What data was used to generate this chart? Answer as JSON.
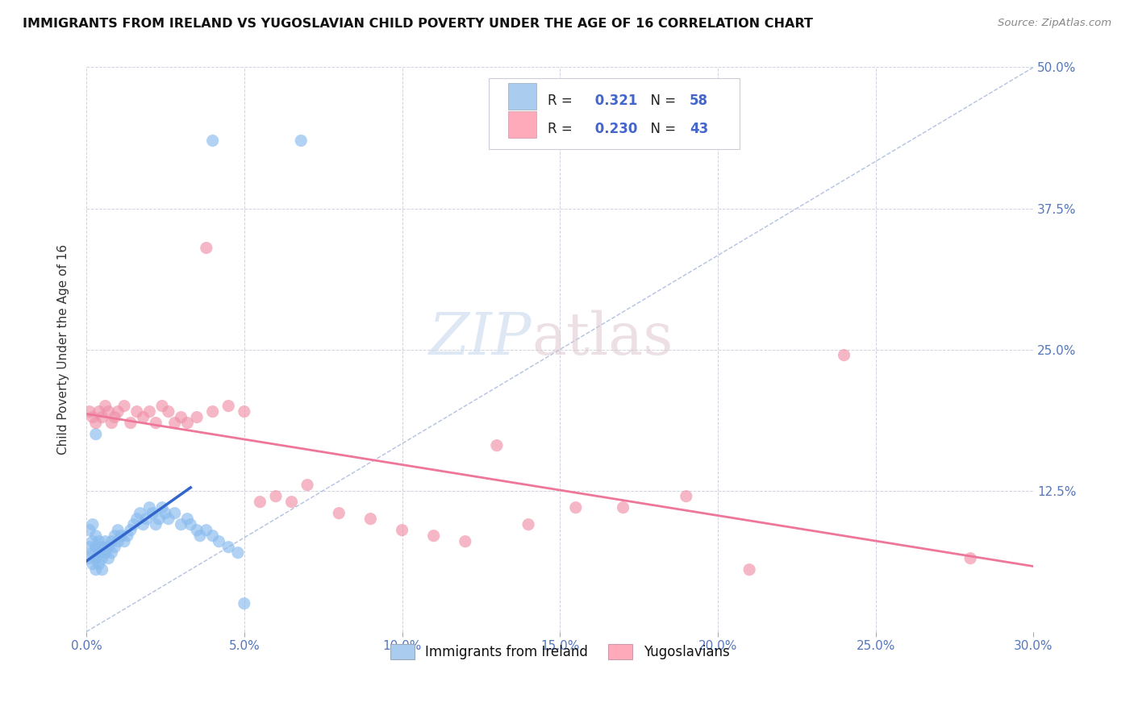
{
  "title": "IMMIGRANTS FROM IRELAND VS YUGOSLAVIAN CHILD POVERTY UNDER THE AGE OF 16 CORRELATION CHART",
  "source": "Source: ZipAtlas.com",
  "ylabel": "Child Poverty Under the Age of 16",
  "xlim": [
    0.0,
    0.3
  ],
  "ylim": [
    0.0,
    0.5
  ],
  "x_tick_vals": [
    0.0,
    0.05,
    0.1,
    0.15,
    0.2,
    0.25,
    0.3
  ],
  "x_tick_labels": [
    "0.0%",
    "5.0%",
    "10.0%",
    "15.0%",
    "20.0%",
    "25.0%",
    "30.0%"
  ],
  "y_tick_vals": [
    0.0,
    0.125,
    0.25,
    0.375,
    0.5
  ],
  "y_tick_labels": [
    "",
    "12.5%",
    "25.0%",
    "37.5%",
    "50.0%"
  ],
  "ireland_color": "#88bbee",
  "yugoslav_color": "#f090a8",
  "ireland_line_color": "#3366cc",
  "yugoslav_line_color": "#ee7799",
  "dashed_line_color": "#aabbdd",
  "legend_patch_ireland": "#aaccee",
  "legend_patch_yugoslav": "#ffaabb",
  "legend_labels_bottom": [
    "Immigrants from Ireland",
    "Yugoslavians"
  ],
  "watermark_zip_color": "#d0ddf0",
  "watermark_atlas_color": "#ddc8d0",
  "ireland_x": [
    0.001,
    0.001,
    0.001,
    0.002,
    0.002,
    0.002,
    0.002,
    0.003,
    0.003,
    0.003,
    0.003,
    0.004,
    0.004,
    0.004,
    0.005,
    0.005,
    0.005,
    0.006,
    0.006,
    0.007,
    0.007,
    0.008,
    0.008,
    0.009,
    0.009,
    0.01,
    0.01,
    0.011,
    0.012,
    0.013,
    0.014,
    0.015,
    0.016,
    0.017,
    0.018,
    0.019,
    0.02,
    0.021,
    0.022,
    0.023,
    0.024,
    0.025,
    0.026,
    0.028,
    0.03,
    0.032,
    0.033,
    0.035,
    0.036,
    0.038,
    0.04,
    0.042,
    0.045,
    0.048,
    0.05,
    0.003,
    0.04,
    0.068
  ],
  "ireland_y": [
    0.065,
    0.075,
    0.09,
    0.06,
    0.07,
    0.08,
    0.095,
    0.055,
    0.065,
    0.075,
    0.085,
    0.06,
    0.07,
    0.08,
    0.055,
    0.065,
    0.075,
    0.07,
    0.08,
    0.065,
    0.075,
    0.07,
    0.08,
    0.075,
    0.085,
    0.08,
    0.09,
    0.085,
    0.08,
    0.085,
    0.09,
    0.095,
    0.1,
    0.105,
    0.095,
    0.1,
    0.11,
    0.105,
    0.095,
    0.1,
    0.11,
    0.105,
    0.1,
    0.105,
    0.095,
    0.1,
    0.095,
    0.09,
    0.085,
    0.09,
    0.085,
    0.08,
    0.075,
    0.07,
    0.025,
    0.175,
    0.435,
    0.435
  ],
  "yugoslav_x": [
    0.001,
    0.002,
    0.003,
    0.004,
    0.005,
    0.006,
    0.007,
    0.008,
    0.009,
    0.01,
    0.012,
    0.014,
    0.016,
    0.018,
    0.02,
    0.022,
    0.024,
    0.026,
    0.028,
    0.03,
    0.032,
    0.035,
    0.038,
    0.04,
    0.045,
    0.05,
    0.055,
    0.06,
    0.065,
    0.07,
    0.08,
    0.09,
    0.1,
    0.11,
    0.12,
    0.13,
    0.14,
    0.155,
    0.17,
    0.19,
    0.21,
    0.24,
    0.28
  ],
  "yugoslav_y": [
    0.195,
    0.19,
    0.185,
    0.195,
    0.19,
    0.2,
    0.195,
    0.185,
    0.19,
    0.195,
    0.2,
    0.185,
    0.195,
    0.19,
    0.195,
    0.185,
    0.2,
    0.195,
    0.185,
    0.19,
    0.185,
    0.19,
    0.34,
    0.195,
    0.2,
    0.195,
    0.115,
    0.12,
    0.115,
    0.13,
    0.105,
    0.1,
    0.09,
    0.085,
    0.08,
    0.165,
    0.095,
    0.11,
    0.11,
    0.12,
    0.055,
    0.245,
    0.065
  ]
}
